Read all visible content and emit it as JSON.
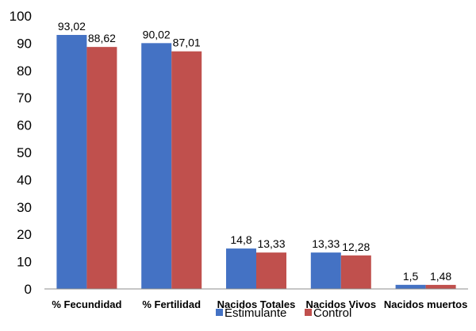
{
  "chart_data": {
    "type": "bar",
    "categories": [
      "% Fecundidad",
      "% Fertilidad",
      "Nacidos Totales",
      "Nacidos Vivos",
      "Nacidos muertos"
    ],
    "series": [
      {
        "name": "Estimulante",
        "color": "#4472C4",
        "values": [
          93.02,
          90.02,
          14.8,
          13.33,
          1.5
        ],
        "labels": [
          "93,02",
          "90,02",
          "14,8",
          "13,33",
          "1,5"
        ]
      },
      {
        "name": "Control",
        "color": "#C0504D",
        "values": [
          88.62,
          87.01,
          13.33,
          12.28,
          1.48
        ],
        "labels": [
          "88,62",
          "87,01",
          "13,33",
          "12,28",
          "1,48"
        ]
      }
    ],
    "ylim": [
      0,
      100
    ],
    "yticks": [
      0,
      10,
      20,
      30,
      40,
      50,
      60,
      70,
      80,
      90,
      100
    ],
    "grid": false,
    "legend": "bottom"
  }
}
